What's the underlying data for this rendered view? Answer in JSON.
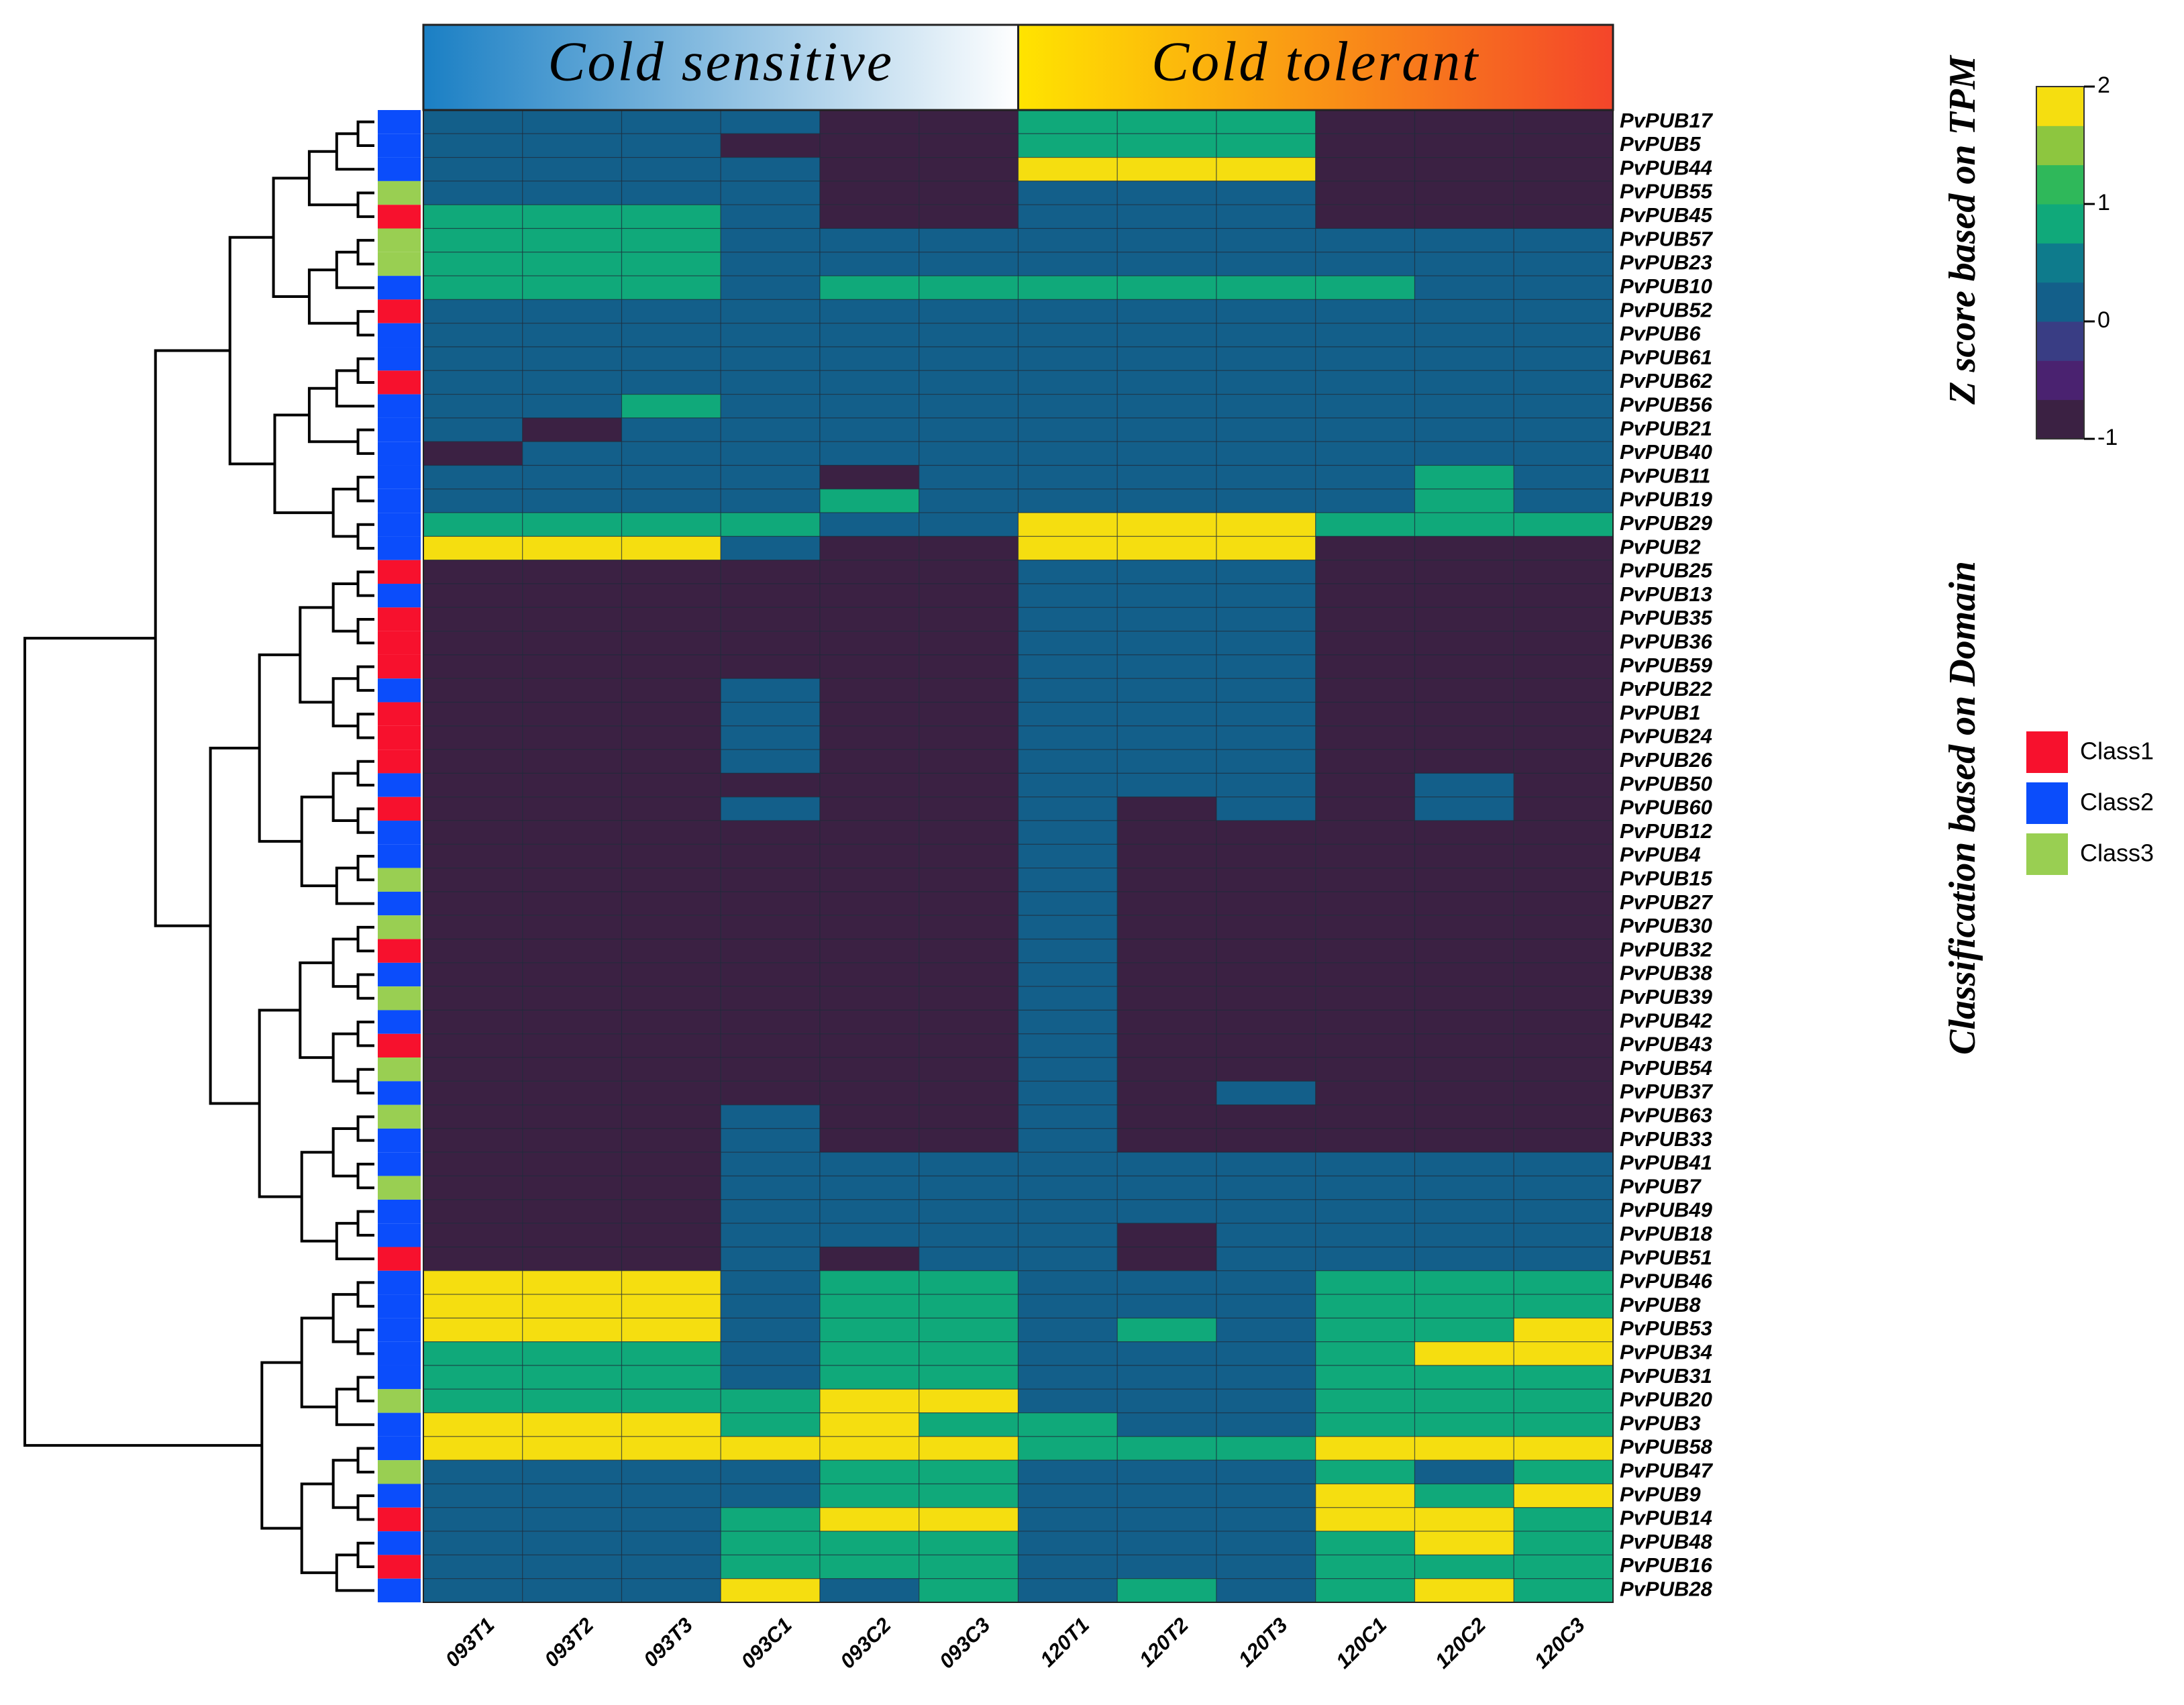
{
  "chart_data": {
    "type": "heatmap",
    "x": [
      "093T1",
      "093T2",
      "093T3",
      "093C1",
      "093C2",
      "093C3",
      "120T1",
      "120T2",
      "120T3",
      "120C1",
      "120C2",
      "120C3"
    ],
    "y": [
      "PvPUB17",
      "PvPUB5",
      "PvPUB44",
      "PvPUB55",
      "PvPUB45",
      "PvPUB57",
      "PvPUB23",
      "PvPUB10",
      "PvPUB52",
      "PvPUB6",
      "PvPUB61",
      "PvPUB62",
      "PvPUB56",
      "PvPUB21",
      "PvPUB40",
      "PvPUB11",
      "PvPUB19",
      "PvPUB29",
      "PvPUB2",
      "PvPUB25",
      "PvPUB13",
      "PvPUB35",
      "PvPUB36",
      "PvPUB59",
      "PvPUB22",
      "PvPUB1",
      "PvPUB24",
      "PvPUB26",
      "PvPUB50",
      "PvPUB60",
      "PvPUB12",
      "PvPUB4",
      "PvPUB15",
      "PvPUB27",
      "PvPUB30",
      "PvPUB32",
      "PvPUB38",
      "PvPUB39",
      "PvPUB42",
      "PvPUB43",
      "PvPUB54",
      "PvPUB37",
      "PvPUB63",
      "PvPUB33",
      "PvPUB41",
      "PvPUB7",
      "PvPUB49",
      "PvPUB18",
      "PvPUB51",
      "PvPUB46",
      "PvPUB8",
      "PvPUB53",
      "PvPUB34",
      "PvPUB31",
      "PvPUB20",
      "PvPUB3",
      "PvPUB58",
      "PvPUB47",
      "PvPUB9",
      "PvPUB14",
      "PvPUB48",
      "PvPUB16",
      "PvPUB28"
    ],
    "values": [
      [
        0,
        0,
        0,
        0,
        -1,
        -1,
        1,
        1,
        1,
        -1,
        -1,
        -1
      ],
      [
        0,
        0,
        0,
        -1,
        -1,
        -1,
        1,
        1,
        1,
        -1,
        -1,
        -1
      ],
      [
        0,
        0,
        0,
        0,
        -1,
        -1,
        2,
        2,
        2,
        -1,
        -1,
        -1
      ],
      [
        0,
        0,
        0,
        0,
        -1,
        -1,
        0,
        0,
        0,
        -1,
        -1,
        -1
      ],
      [
        1,
        1,
        1,
        0,
        -1,
        -1,
        0,
        0,
        0,
        -1,
        -1,
        -1
      ],
      [
        1,
        1,
        1,
        0,
        0,
        0,
        0,
        0,
        0,
        0,
        0,
        0
      ],
      [
        1,
        1,
        1,
        0,
        0,
        0,
        0,
        0,
        0,
        0,
        0,
        0
      ],
      [
        1,
        1,
        1,
        0,
        1,
        1,
        1,
        1,
        1,
        1,
        0,
        0
      ],
      [
        0,
        0,
        0,
        0,
        0,
        0,
        0,
        0,
        0,
        0,
        0,
        0
      ],
      [
        0,
        0,
        0,
        0,
        0,
        0,
        0,
        0,
        0,
        0,
        0,
        0
      ],
      [
        0,
        0,
        0,
        0,
        0,
        0,
        0,
        0,
        0,
        0,
        0,
        0
      ],
      [
        0,
        0,
        0,
        0,
        0,
        0,
        0,
        0,
        0,
        0,
        0,
        0
      ],
      [
        0,
        0,
        1,
        0,
        0,
        0,
        0,
        0,
        0,
        0,
        0,
        0
      ],
      [
        0,
        -1,
        0,
        0,
        0,
        0,
        0,
        0,
        0,
        0,
        0,
        0
      ],
      [
        -1,
        0,
        0,
        0,
        0,
        0,
        0,
        0,
        0,
        0,
        0,
        0
      ],
      [
        0,
        0,
        0,
        0,
        -1,
        0,
        0,
        0,
        0,
        0,
        1,
        0
      ],
      [
        0,
        0,
        0,
        0,
        1,
        0,
        0,
        0,
        0,
        0,
        1,
        0
      ],
      [
        1,
        1,
        1,
        1,
        0,
        0,
        2,
        2,
        2,
        1,
        1,
        1
      ],
      [
        2,
        2,
        2,
        0,
        -1,
        -1,
        2,
        2,
        2,
        -1,
        -1,
        -1
      ],
      [
        -1,
        -1,
        -1,
        -1,
        -1,
        -1,
        0,
        0,
        0,
        -1,
        -1,
        -1
      ],
      [
        -1,
        -1,
        -1,
        -1,
        -1,
        -1,
        0,
        0,
        0,
        -1,
        -1,
        -1
      ],
      [
        -1,
        -1,
        -1,
        -1,
        -1,
        -1,
        0,
        0,
        0,
        -1,
        -1,
        -1
      ],
      [
        -1,
        -1,
        -1,
        -1,
        -1,
        -1,
        0,
        0,
        0,
        -1,
        -1,
        -1
      ],
      [
        -1,
        -1,
        -1,
        -1,
        -1,
        -1,
        0,
        0,
        0,
        -1,
        -1,
        -1
      ],
      [
        -1,
        -1,
        -1,
        0,
        -1,
        -1,
        0,
        0,
        0,
        -1,
        -1,
        -1
      ],
      [
        -1,
        -1,
        -1,
        0,
        -1,
        -1,
        0,
        0,
        0,
        -1,
        -1,
        -1
      ],
      [
        -1,
        -1,
        -1,
        0,
        -1,
        -1,
        0,
        0,
        0,
        -1,
        -1,
        -1
      ],
      [
        -1,
        -1,
        -1,
        0,
        -1,
        -1,
        0,
        0,
        0,
        -1,
        -1,
        -1
      ],
      [
        -1,
        -1,
        -1,
        -1,
        -1,
        -1,
        0,
        0,
        0,
        -1,
        0,
        -1
      ],
      [
        -1,
        -1,
        -1,
        0,
        -1,
        -1,
        0,
        -1,
        0,
        -1,
        0,
        -1
      ],
      [
        -1,
        -1,
        -1,
        -1,
        -1,
        -1,
        0,
        -1,
        -1,
        -1,
        -1,
        -1
      ],
      [
        -1,
        -1,
        -1,
        -1,
        -1,
        -1,
        0,
        -1,
        -1,
        -1,
        -1,
        -1
      ],
      [
        -1,
        -1,
        -1,
        -1,
        -1,
        -1,
        0,
        -1,
        -1,
        -1,
        -1,
        -1
      ],
      [
        -1,
        -1,
        -1,
        -1,
        -1,
        -1,
        0,
        -1,
        -1,
        -1,
        -1,
        -1
      ],
      [
        -1,
        -1,
        -1,
        -1,
        -1,
        -1,
        0,
        -1,
        -1,
        -1,
        -1,
        -1
      ],
      [
        -1,
        -1,
        -1,
        -1,
        -1,
        -1,
        0,
        -1,
        -1,
        -1,
        -1,
        -1
      ],
      [
        -1,
        -1,
        -1,
        -1,
        -1,
        -1,
        0,
        -1,
        -1,
        -1,
        -1,
        -1
      ],
      [
        -1,
        -1,
        -1,
        -1,
        -1,
        -1,
        0,
        -1,
        -1,
        -1,
        -1,
        -1
      ],
      [
        -1,
        -1,
        -1,
        -1,
        -1,
        -1,
        0,
        -1,
        -1,
        -1,
        -1,
        -1
      ],
      [
        -1,
        -1,
        -1,
        -1,
        -1,
        -1,
        0,
        -1,
        -1,
        -1,
        -1,
        -1
      ],
      [
        -1,
        -1,
        -1,
        -1,
        -1,
        -1,
        0,
        -1,
        -1,
        -1,
        -1,
        -1
      ],
      [
        -1,
        -1,
        -1,
        -1,
        -1,
        -1,
        0,
        -1,
        0,
        -1,
        -1,
        -1
      ],
      [
        -1,
        -1,
        -1,
        0,
        -1,
        -1,
        0,
        -1,
        -1,
        -1,
        -1,
        -1
      ],
      [
        -1,
        -1,
        -1,
        0,
        -1,
        -1,
        0,
        -1,
        -1,
        -1,
        -1,
        -1
      ],
      [
        -1,
        -1,
        -1,
        0,
        0,
        0,
        0,
        0,
        0,
        0,
        0,
        0
      ],
      [
        -1,
        -1,
        -1,
        0,
        0,
        0,
        0,
        0,
        0,
        0,
        0,
        0
      ],
      [
        -1,
        -1,
        -1,
        0,
        0,
        0,
        0,
        0,
        0,
        0,
        0,
        0
      ],
      [
        -1,
        -1,
        -1,
        0,
        0,
        0,
        0,
        -1,
        0,
        0,
        0,
        0
      ],
      [
        -1,
        -1,
        -1,
        0,
        -1,
        0,
        0,
        -1,
        0,
        0,
        0,
        0
      ],
      [
        2,
        2,
        2,
        0,
        1,
        1,
        0,
        0,
        0,
        1,
        1,
        1
      ],
      [
        2,
        2,
        2,
        0,
        1,
        1,
        0,
        0,
        0,
        1,
        1,
        1
      ],
      [
        2,
        2,
        2,
        0,
        1,
        1,
        0,
        1,
        0,
        1,
        1,
        2
      ],
      [
        1,
        1,
        1,
        0,
        1,
        1,
        0,
        0,
        0,
        1,
        2,
        2
      ],
      [
        1,
        1,
        1,
        0,
        1,
        1,
        0,
        0,
        0,
        1,
        1,
        1
      ],
      [
        1,
        1,
        1,
        1,
        2,
        2,
        0,
        0,
        0,
        1,
        1,
        1
      ],
      [
        2,
        2,
        2,
        1,
        2,
        1,
        1,
        0,
        0,
        1,
        1,
        1
      ],
      [
        2,
        2,
        2,
        2,
        2,
        2,
        1,
        1,
        1,
        2,
        2,
        2
      ],
      [
        0,
        0,
        0,
        0,
        1,
        1,
        0,
        0,
        0,
        1,
        0,
        1
      ],
      [
        0,
        0,
        0,
        0,
        1,
        1,
        0,
        0,
        0,
        2,
        1,
        2
      ],
      [
        0,
        0,
        0,
        1,
        2,
        2,
        0,
        0,
        0,
        2,
        2,
        1
      ],
      [
        0,
        0,
        0,
        1,
        1,
        1,
        0,
        0,
        0,
        1,
        2,
        1
      ],
      [
        0,
        0,
        0,
        1,
        1,
        1,
        0,
        0,
        0,
        1,
        1,
        1
      ],
      [
        0,
        0,
        0,
        2,
        0,
        1,
        0,
        1,
        0,
        1,
        2,
        1
      ]
    ],
    "zlim": [
      -1,
      2
    ],
    "zticks": [
      -1,
      0,
      1,
      2
    ],
    "colorscale": [
      "#3b2143",
      "#4a2270",
      "#393d84",
      "#135f8a",
      "#0e7b8c",
      "#10a97a",
      "#2fb85a",
      "#8dc63f",
      "#f5de10"
    ],
    "colorbar_title": "Z score based on TPM",
    "groups": [
      {
        "label": "Cold sensitive",
        "size": 6,
        "colors": [
          "#1a7fc4",
          "#ffffff"
        ]
      },
      {
        "label": "Cold tolerant",
        "size": 6,
        "colors": [
          "#ffe400",
          "#f4452a"
        ]
      }
    ],
    "class_legend_title": "Classification based on Domain",
    "classes": [
      "Class1",
      "Class2",
      "Class3"
    ],
    "class_colors": [
      "#f7112d",
      "#0b4dfb",
      "#99cf52"
    ],
    "row_classes": [
      "Class2",
      "Class2",
      "Class2",
      "Class3",
      "Class1",
      "Class3",
      "Class3",
      "Class2",
      "Class1",
      "Class2",
      "Class2",
      "Class1",
      "Class2",
      "Class2",
      "Class2",
      "Class2",
      "Class2",
      "Class2",
      "Class2",
      "Class1",
      "Class2",
      "Class1",
      "Class1",
      "Class1",
      "Class2",
      "Class1",
      "Class1",
      "Class1",
      "Class2",
      "Class1",
      "Class2",
      "Class2",
      "Class3",
      "Class2",
      "Class3",
      "Class1",
      "Class2",
      "Class3",
      "Class2",
      "Class1",
      "Class3",
      "Class2",
      "Class3",
      "Class2",
      "Class2",
      "Class3",
      "Class2",
      "Class2",
      "Class1",
      "Class2",
      "Class2",
      "Class2",
      "Class2",
      "Class2",
      "Class3",
      "Class2",
      "Class2",
      "Class3",
      "Class2",
      "Class1",
      "Class2",
      "Class1",
      "Class2"
    ]
  }
}
